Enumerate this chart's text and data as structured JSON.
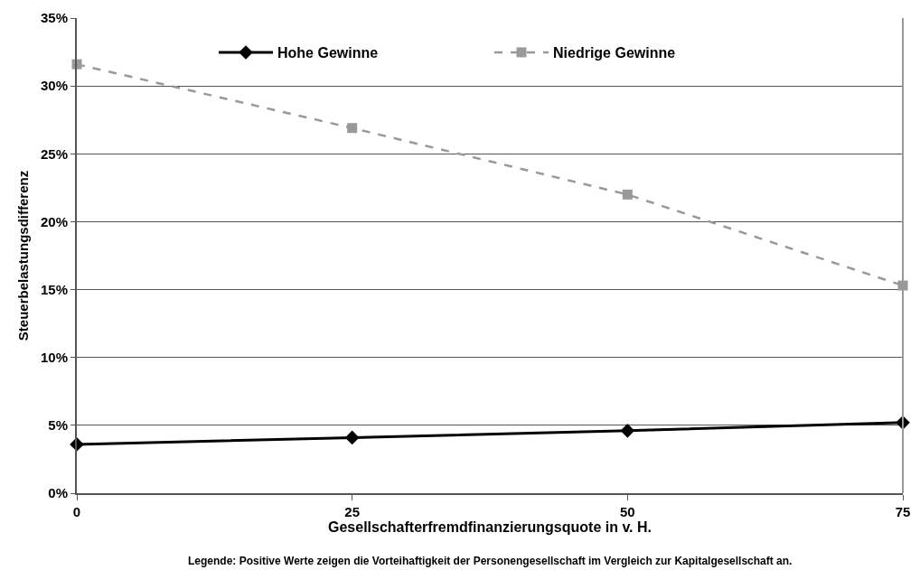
{
  "chart_data": {
    "type": "line",
    "xlabel": "Gesellschafterfremdfinanzierungsquote in v. H.",
    "ylabel": "Steuerbelastungsdifferenz",
    "x": [
      0,
      25,
      50,
      75
    ],
    "series": [
      {
        "name": "Hohe Gewinne",
        "color": "#000000",
        "values": [
          3.6,
          4.1,
          4.6,
          5.2
        ],
        "marker": "diamond",
        "line_style": "solid"
      },
      {
        "name": "Niedrige Gewinne",
        "color": "#999999",
        "values": [
          31.6,
          26.9,
          22.0,
          15.3
        ],
        "marker": "square",
        "line_style": "dashed"
      }
    ],
    "xlim": [
      0,
      75
    ],
    "xticks": [
      0,
      25,
      50,
      75
    ],
    "ylim": [
      0,
      35
    ],
    "yticks": [
      {
        "value": 0,
        "label": "0%"
      },
      {
        "value": 5,
        "label": "5%"
      },
      {
        "value": 10,
        "label": "10%"
      },
      {
        "value": 15,
        "label": "15%"
      },
      {
        "value": 20,
        "label": "20%"
      },
      {
        "value": 25,
        "label": "25%"
      },
      {
        "value": 30,
        "label": "30%"
      },
      {
        "value": 35,
        "label": "35%"
      }
    ],
    "grid": "y",
    "legend": "top",
    "annotations": [
      "Legende: Positive Werte zeigen die Vorteihaftigkeit der Personengesellschaft im Vergleich zur Kapitalgesellschaft an."
    ]
  }
}
